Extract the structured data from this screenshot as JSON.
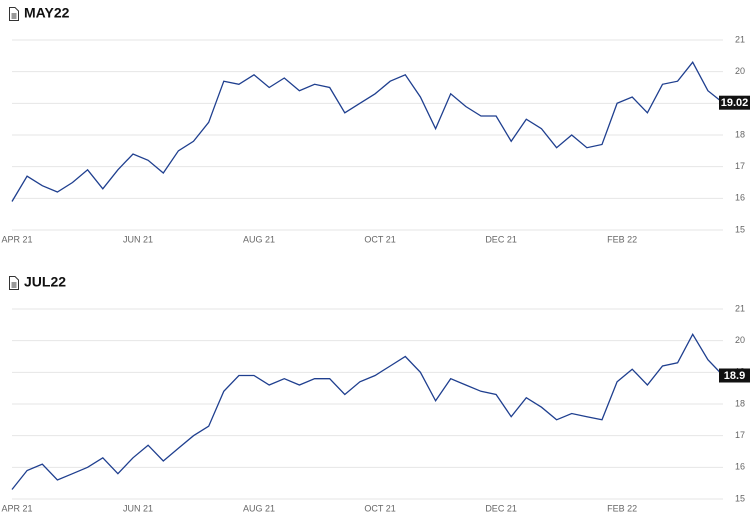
{
  "chart_data": [
    {
      "type": "line",
      "title": "MAY22",
      "categories": [
        "APR 21",
        null,
        null,
        null,
        null,
        null,
        null,
        null,
        "JUN 21",
        null,
        null,
        null,
        null,
        null,
        null,
        null,
        "AUG 21",
        null,
        null,
        null,
        null,
        null,
        null,
        null,
        "OCT 21",
        null,
        null,
        null,
        null,
        null,
        null,
        null,
        "DEC 21",
        null,
        null,
        null,
        null,
        null,
        null,
        null,
        "FEB 22",
        null,
        null,
        null,
        null,
        null,
        null,
        null
      ],
      "series": [
        {
          "name": "MAY22",
          "color": "#1f3f8f",
          "values": [
            15.9,
            16.7,
            16.4,
            16.2,
            16.5,
            16.9,
            16.3,
            16.9,
            17.4,
            17.2,
            16.8,
            17.5,
            17.8,
            18.4,
            19.7,
            19.6,
            19.9,
            19.5,
            19.8,
            19.4,
            19.6,
            19.5,
            18.7,
            19.0,
            19.3,
            19.7,
            19.9,
            19.2,
            18.2,
            19.3,
            18.9,
            18.6,
            18.6,
            17.8,
            18.5,
            18.2,
            17.6,
            18.0,
            17.6,
            17.7,
            19.0,
            19.2,
            18.7,
            19.6,
            19.7,
            20.3,
            19.4,
            19.02
          ]
        }
      ],
      "ylim": [
        15,
        21
      ],
      "yticks": [
        15,
        16,
        17,
        18,
        19,
        20,
        21
      ],
      "grid": true
    },
    {
      "type": "line",
      "title": "JUL22",
      "categories": [
        "APR 21",
        null,
        null,
        null,
        null,
        null,
        null,
        null,
        "JUN 21",
        null,
        null,
        null,
        null,
        null,
        null,
        null,
        "AUG 21",
        null,
        null,
        null,
        null,
        null,
        null,
        null,
        "OCT 21",
        null,
        null,
        null,
        null,
        null,
        null,
        null,
        "DEC 21",
        null,
        null,
        null,
        null,
        null,
        null,
        null,
        "FEB 22",
        null,
        null,
        null,
        null,
        null,
        null,
        null
      ],
      "series": [
        {
          "name": "JUL22",
          "color": "#1f3f8f",
          "values": [
            15.3,
            15.9,
            16.1,
            15.6,
            15.8,
            16.0,
            16.3,
            15.8,
            16.3,
            16.7,
            16.2,
            16.6,
            17.0,
            17.3,
            18.4,
            18.9,
            18.9,
            18.6,
            18.8,
            18.6,
            18.8,
            18.8,
            18.3,
            18.7,
            18.9,
            19.2,
            19.5,
            19.0,
            18.1,
            18.8,
            18.6,
            18.4,
            18.3,
            17.6,
            18.2,
            17.9,
            17.5,
            17.7,
            17.6,
            17.5,
            18.7,
            19.1,
            18.6,
            19.2,
            19.3,
            20.2,
            19.4,
            18.9
          ]
        }
      ],
      "ylim": [
        15,
        21
      ],
      "yticks": [
        15,
        16,
        17,
        18,
        19,
        20,
        21
      ],
      "grid": true
    }
  ]
}
